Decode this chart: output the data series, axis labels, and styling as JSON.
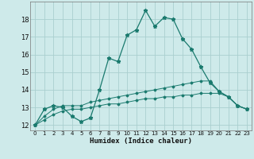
{
  "title": "",
  "xlabel": "Humidex (Indice chaleur)",
  "ylabel": "",
  "bg_color": "#ceeaea",
  "grid_color": "#aacfcf",
  "line_color": "#1a7a6e",
  "xlim": [
    -0.5,
    23.5
  ],
  "ylim": [
    11.7,
    19.0
  ],
  "yticks": [
    12,
    13,
    14,
    15,
    16,
    17,
    18
  ],
  "xticks": [
    0,
    1,
    2,
    3,
    4,
    5,
    6,
    7,
    8,
    9,
    10,
    11,
    12,
    13,
    14,
    15,
    16,
    17,
    18,
    19,
    20,
    21,
    22,
    23
  ],
  "series1_x": [
    0,
    1,
    2,
    3,
    4,
    5,
    6,
    7,
    8,
    9,
    10,
    11,
    12,
    13,
    14,
    15,
    16,
    17,
    18,
    19,
    20,
    21,
    22,
    23
  ],
  "series1_y": [
    12.0,
    12.9,
    13.1,
    13.0,
    12.5,
    12.2,
    12.4,
    14.0,
    15.8,
    15.6,
    17.1,
    17.4,
    18.5,
    17.6,
    18.1,
    18.0,
    16.9,
    16.3,
    15.3,
    14.4,
    13.9,
    13.6,
    13.1,
    12.9
  ],
  "series2_x": [
    0,
    1,
    2,
    3,
    4,
    5,
    6,
    7,
    8,
    9,
    10,
    11,
    12,
    13,
    14,
    15,
    16,
    17,
    18,
    19,
    20,
    21,
    22,
    23
  ],
  "series2_y": [
    12.0,
    12.5,
    12.9,
    13.1,
    13.1,
    13.1,
    13.3,
    13.4,
    13.5,
    13.6,
    13.7,
    13.8,
    13.9,
    14.0,
    14.1,
    14.2,
    14.3,
    14.4,
    14.5,
    14.5,
    13.9,
    13.6,
    13.1,
    12.9
  ],
  "series3_x": [
    0,
    1,
    2,
    3,
    4,
    5,
    6,
    7,
    8,
    9,
    10,
    11,
    12,
    13,
    14,
    15,
    16,
    17,
    18,
    19,
    20,
    21,
    22,
    23
  ],
  "series3_y": [
    12.0,
    12.3,
    12.6,
    12.8,
    12.9,
    12.9,
    13.0,
    13.1,
    13.2,
    13.2,
    13.3,
    13.4,
    13.5,
    13.5,
    13.6,
    13.6,
    13.7,
    13.7,
    13.8,
    13.8,
    13.8,
    13.6,
    13.1,
    12.9
  ]
}
